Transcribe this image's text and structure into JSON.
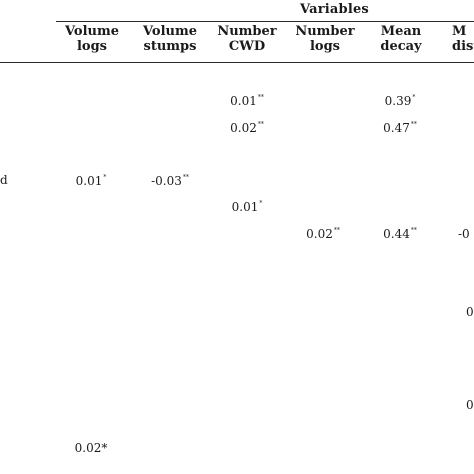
{
  "table": {
    "group_header": "Variables",
    "columns": [
      {
        "line1": "Volume",
        "line2": "logs"
      },
      {
        "line1": "Volume",
        "line2": "stumps"
      },
      {
        "line1": "Number",
        "line2": "CWD"
      },
      {
        "line1": "Number",
        "line2": "logs"
      },
      {
        "line1": "Mean",
        "line2": "decay"
      },
      {
        "line1": "M",
        "line2": "dist"
      }
    ],
    "row_stub_fragment": "d",
    "cells": [
      {
        "value": "0.01",
        "sig": "**"
      },
      {
        "value": "0.39",
        "sig": "*"
      },
      {
        "value": "0.02",
        "sig": "**"
      },
      {
        "value": "0.47",
        "sig": "**"
      },
      {
        "value": "0.01",
        "sig": "*"
      },
      {
        "value": "-0.03",
        "sig": "**"
      },
      {
        "value": "0.01",
        "sig": "*"
      },
      {
        "value": "0.02",
        "sig": "**"
      },
      {
        "value": "0.44",
        "sig": "**"
      },
      {
        "value": "-0",
        "sig": ""
      },
      {
        "value": "0",
        "sig": ""
      },
      {
        "value": "0",
        "sig": ""
      },
      {
        "value": "0.02*",
        "sig": ""
      }
    ]
  }
}
